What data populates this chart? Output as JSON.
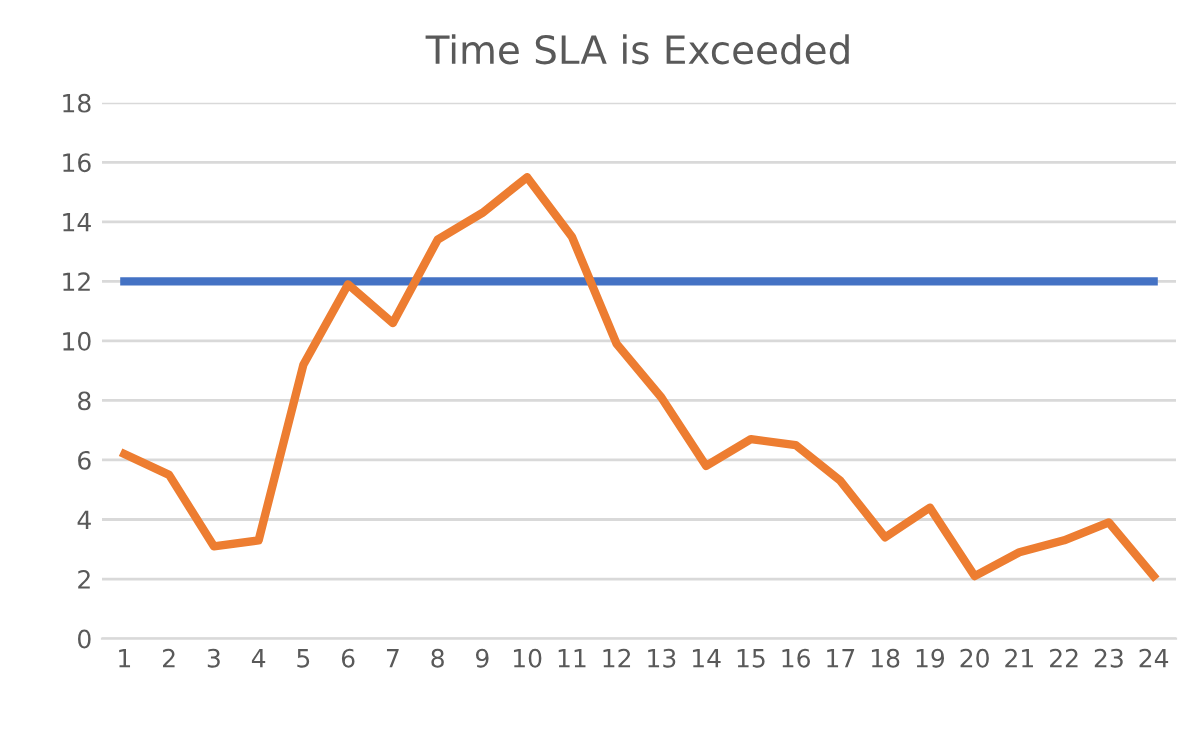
{
  "chart_data": {
    "type": "line",
    "title": "Time SLA is Exceeded",
    "categories": [
      "1",
      "2",
      "3",
      "4",
      "5",
      "6",
      "7",
      "8",
      "9",
      "10",
      "11",
      "12",
      "13",
      "14",
      "15",
      "16",
      "17",
      "18",
      "19",
      "20",
      "21",
      "22",
      "23",
      "24"
    ],
    "series": [
      {
        "color": "#4472c4",
        "values": [
          12,
          12,
          12,
          12,
          12,
          12,
          12,
          12,
          12,
          12,
          12,
          12,
          12,
          12,
          12,
          12,
          12,
          12,
          12,
          12,
          12,
          12,
          12,
          12
        ]
      },
      {
        "color": "#ed7d31",
        "values": [
          6.2,
          5.5,
          3.1,
          3.3,
          9.2,
          11.9,
          10.6,
          13.4,
          14.3,
          15.5,
          13.5,
          9.9,
          8.1,
          5.8,
          6.7,
          6.5,
          5.3,
          3.4,
          4.4,
          2.1,
          2.9,
          3.3,
          3.9,
          2.1
        ]
      }
    ],
    "ylim": [
      0,
      18
    ],
    "yticks": [
      0,
      2,
      4,
      6,
      8,
      10,
      12,
      14,
      16,
      18
    ],
    "grid": "y",
    "marker": "none",
    "line_style": "solid"
  }
}
